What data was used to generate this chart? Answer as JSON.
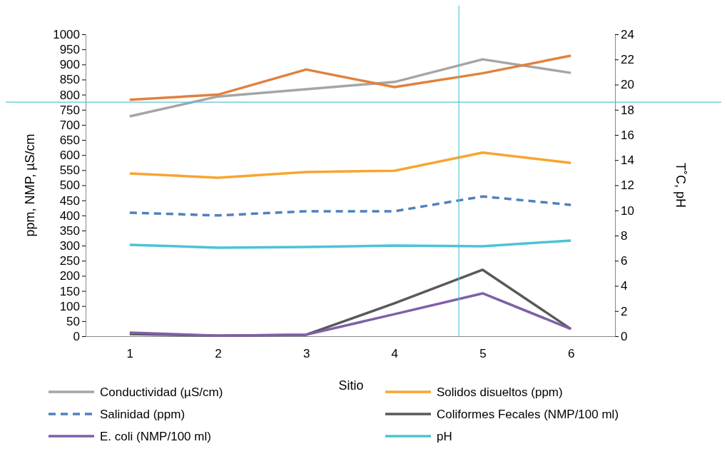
{
  "chart_data": {
    "type": "line",
    "xlabel": "Sitio",
    "ylabel": "ppm, NMP, µS/cm",
    "y2label": "T˚C, pH",
    "x": [
      1,
      2,
      3,
      4,
      5,
      6
    ],
    "xlim": [
      0.5,
      6.5
    ],
    "xticks": [
      1,
      2,
      3,
      4,
      5,
      6
    ],
    "ylim": [
      0,
      1000
    ],
    "yticks": [
      0,
      50,
      100,
      150,
      200,
      250,
      300,
      350,
      400,
      450,
      500,
      550,
      600,
      650,
      700,
      750,
      800,
      850,
      900,
      950,
      1000
    ],
    "y2lim": [
      0,
      24
    ],
    "y2ticks": [
      0,
      2,
      4,
      6,
      8,
      10,
      12,
      14,
      16,
      18,
      20,
      22,
      24
    ],
    "legend": "bottom",
    "grid": false,
    "marker": "none",
    "ref_lines": [
      {
        "axis": "x",
        "value": 4.73,
        "color": "#5bc3d0"
      },
      {
        "axis": "y",
        "value": 775,
        "color": "#5bc3d0"
      }
    ],
    "series": [
      {
        "name": "Conductividad (µS/cm)",
        "color": "#a5a5a5",
        "line_style": "solid",
        "values": [
          728,
          794,
          818,
          842,
          917,
          872
        ]
      },
      {
        "color": "#e0813e",
        "axis": "y2",
        "line_style": "solid",
        "values": [
          18.8,
          19.2,
          21.2,
          19.8,
          20.9,
          22.3
        ]
      },
      {
        "name": "Solidos disueltos (ppm)",
        "color": "#f7a531",
        "line_style": "solid",
        "values": [
          539,
          525,
          544,
          548,
          608,
          574
        ]
      },
      {
        "name": "Salinidad (ppm)",
        "color": "#4f81bd",
        "line_style": "dashed",
        "values": [
          409,
          400,
          414,
          414,
          463,
          435
        ]
      },
      {
        "name": "Coliformes Fecales (NMP/100 ml)",
        "color": "#595959",
        "line_style": "solid",
        "values": [
          7,
          2,
          5,
          109,
          220,
          24
        ]
      },
      {
        "name": "E. coli (NMP/100 ml)",
        "color": "#7f5fa8",
        "line_style": "solid",
        "values": [
          12,
          2,
          5,
          73,
          142,
          24
        ]
      },
      {
        "name": "pH",
        "color": "#4bc3d6",
        "axis": "y2",
        "line_style": "solid",
        "values": [
          7.26,
          7.04,
          7.09,
          7.2,
          7.15,
          7.6
        ]
      }
    ]
  }
}
